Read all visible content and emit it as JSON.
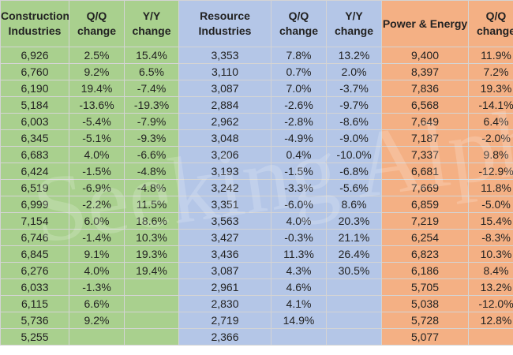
{
  "headers": [
    "Construction Industries",
    "Q/Q change",
    "Y/Y change",
    "Resource Industries",
    "Q/Q change",
    "Y/Y change",
    "Power & Energy",
    "Q/Q change"
  ],
  "column_colors": [
    "#A9D08E",
    "#A9D08E",
    "#A9D08E",
    "#B4C6E7",
    "#B4C6E7",
    "#B4C6E7",
    "#F4B084",
    "#F4B084"
  ],
  "watermark": "Seeking Alpha",
  "rows": [
    [
      "6,926",
      "2.5%",
      "15.4%",
      "3,353",
      "7.8%",
      "13.2%",
      "9,400",
      "11.9%"
    ],
    [
      "6,760",
      "9.2%",
      "6.5%",
      "3,110",
      "0.7%",
      "2.0%",
      "8,397",
      "7.2%"
    ],
    [
      "6,190",
      "19.4%",
      "-7.4%",
      "3,087",
      "7.0%",
      "-3.7%",
      "7,836",
      "19.3%"
    ],
    [
      "5,184",
      "-13.6%",
      "-19.3%",
      "2,884",
      "-2.6%",
      "-9.7%",
      "6,568",
      "-14.1%"
    ],
    [
      "6,003",
      "-5.4%",
      "-7.9%",
      "2,962",
      "-2.8%",
      "-8.6%",
      "7,649",
      "6.4%"
    ],
    [
      "6,345",
      "-5.1%",
      "-9.3%",
      "3,048",
      "-4.9%",
      "-9.0%",
      "7,187",
      "-2.0%"
    ],
    [
      "6,683",
      "4.0%",
      "-6.6%",
      "3,206",
      "0.4%",
      "-10.0%",
      "7,337",
      "9.8%"
    ],
    [
      "6,424",
      "-1.5%",
      "-4.8%",
      "3,193",
      "-1.5%",
      "-6.8%",
      "6,681",
      "-12.9%"
    ],
    [
      "6,519",
      "-6.9%",
      "-4.8%",
      "3,242",
      "-3.3%",
      "-5.6%",
      "7,669",
      "11.8%"
    ],
    [
      "6,999",
      "-2.2%",
      "11.5%",
      "3,351",
      "-6.0%",
      "8.6%",
      "6,859",
      "-5.0%"
    ],
    [
      "7,154",
      "6.0%",
      "18.6%",
      "3,563",
      "4.0%",
      "20.3%",
      "7,219",
      "15.4%"
    ],
    [
      "6,746",
      "-1.4%",
      "10.3%",
      "3,427",
      "-0.3%",
      "21.1%",
      "6,254",
      "-8.3%"
    ],
    [
      "6,845",
      "9.1%",
      "19.3%",
      "3,436",
      "11.3%",
      "26.4%",
      "6,823",
      "10.3%"
    ],
    [
      "6,276",
      "4.0%",
      "19.4%",
      "3,087",
      "4.3%",
      "30.5%",
      "6,186",
      "8.4%"
    ],
    [
      "6,033",
      "-1.3%",
      "",
      "2,961",
      "4.6%",
      "",
      "5,705",
      "13.2%"
    ],
    [
      "6,115",
      "6.6%",
      "",
      "2,830",
      "4.1%",
      "",
      "5,038",
      "-12.0%"
    ],
    [
      "5,736",
      "9.2%",
      "",
      "2,719",
      "14.9%",
      "",
      "5,728",
      "12.8%"
    ],
    [
      "5,255",
      "",
      "",
      "2,366",
      "",
      "",
      "5,077",
      ""
    ]
  ]
}
